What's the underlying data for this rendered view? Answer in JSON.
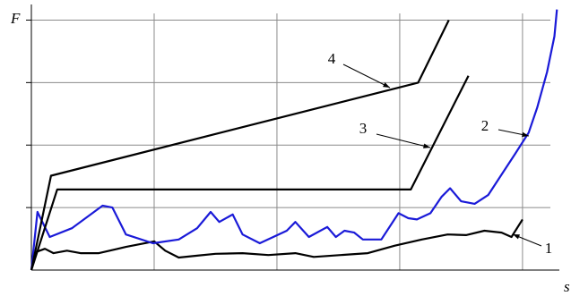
{
  "chart_data": {
    "type": "line",
    "x_label": "s",
    "y_label": "F",
    "xlim": [
      0,
      4.3
    ],
    "ylim": [
      0,
      4.25
    ],
    "xticks": [
      1,
      2,
      3,
      4
    ],
    "yticks": [
      1,
      2,
      3,
      4
    ],
    "grid": true,
    "series": [
      {
        "name": "1",
        "color": "#000000",
        "x": [
          0,
          0.04,
          0.11,
          0.18,
          0.29,
          0.4,
          0.55,
          0.77,
          1.0,
          1.09,
          1.2,
          1.35,
          1.5,
          1.72,
          1.93,
          2.15,
          2.3,
          2.52,
          2.74,
          2.96,
          3.18,
          3.39,
          3.54,
          3.69,
          3.83,
          3.91,
          4.0
        ],
        "values": [
          0,
          0.29,
          0.34,
          0.27,
          0.31,
          0.27,
          0.27,
          0.37,
          0.46,
          0.31,
          0.2,
          0.23,
          0.26,
          0.27,
          0.24,
          0.27,
          0.21,
          0.24,
          0.27,
          0.39,
          0.49,
          0.57,
          0.56,
          0.63,
          0.6,
          0.53,
          0.81
        ]
      },
      {
        "name": "2",
        "color": "#1a1ad8",
        "x": [
          0,
          0.05,
          0.15,
          0.33,
          0.58,
          0.66,
          0.77,
          0.99,
          1.2,
          1.35,
          1.46,
          1.53,
          1.64,
          1.72,
          1.86,
          2.08,
          2.15,
          2.26,
          2.41,
          2.48,
          2.55,
          2.63,
          2.7,
          2.85,
          2.99,
          3.07,
          3.14,
          3.25,
          3.34,
          3.41,
          3.5,
          3.61,
          3.72,
          3.83,
          3.94,
          4.05,
          4.12,
          4.2,
          4.26,
          4.28
        ],
        "values": [
          0,
          0.93,
          0.53,
          0.67,
          1.03,
          1.0,
          0.57,
          0.43,
          0.49,
          0.67,
          0.93,
          0.77,
          0.89,
          0.57,
          0.43,
          0.63,
          0.77,
          0.53,
          0.69,
          0.53,
          0.63,
          0.6,
          0.49,
          0.49,
          0.91,
          0.83,
          0.81,
          0.91,
          1.17,
          1.31,
          1.1,
          1.06,
          1.2,
          1.53,
          1.86,
          2.2,
          2.6,
          3.17,
          3.74,
          4.17
        ]
      },
      {
        "name": "3",
        "color": "#000000",
        "x": [
          0,
          0.21,
          3.09,
          3.56
        ],
        "values": [
          0,
          1.29,
          1.29,
          3.11
        ]
      },
      {
        "name": "4",
        "color": "#000000",
        "x": [
          0,
          0.16,
          3.15,
          3.4
        ],
        "values": [
          0,
          1.51,
          3.0,
          4.0
        ]
      }
    ]
  }
}
